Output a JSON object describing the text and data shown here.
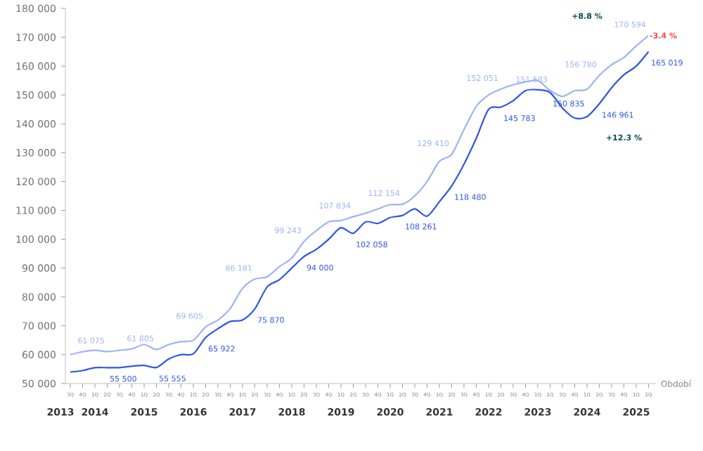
{
  "chart_data": {
    "type": "line",
    "xlabel": "Období",
    "categories": [
      "3Q",
      "4Q",
      "1Q",
      "2Q",
      "3Q",
      "4Q",
      "1Q",
      "2Q",
      "3Q",
      "4Q",
      "1Q",
      "2Q",
      "3Q",
      "4Q",
      "1Q",
      "2Q",
      "3Q",
      "4Q",
      "1Q",
      "2Q",
      "3Q",
      "4Q",
      "1Q",
      "2Q",
      "3Q",
      "4Q",
      "1Q",
      "2Q",
      "3Q",
      "4Q",
      "1Q",
      "2Q",
      "3Q",
      "4Q",
      "1Q",
      "2Q",
      "3Q",
      "4Q",
      "1Q",
      "2Q",
      "3Q",
      "4Q",
      "1Q",
      "2Q",
      "3Q",
      "4Q",
      "1Q",
      "2Q"
    ],
    "series": [
      {
        "color": "#9db3f5",
        "values": [
          60000,
          61000,
          61500,
          61075,
          61500,
          62000,
          63500,
          61805,
          63500,
          64500,
          65000,
          69605,
          72000,
          76000,
          83000,
          86181,
          87000,
          90500,
          93500,
          99243,
          103000,
          106000,
          106500,
          107834,
          109000,
          110500,
          112000,
          112154,
          115000,
          120000,
          127000,
          129410,
          138000,
          146000,
          150000,
          152051,
          153500,
          154500,
          155000,
          151583,
          149500,
          151500,
          152000,
          156780,
          160500,
          163000,
          167000,
          170594
        ],
        "value_labels": [
          null,
          null,
          null,
          "61 075",
          null,
          null,
          null,
          "61 805",
          null,
          null,
          null,
          "69 605",
          null,
          null,
          null,
          "86 181",
          null,
          null,
          null,
          "99 243",
          null,
          null,
          null,
          "107 834",
          null,
          null,
          null,
          "112 154",
          null,
          null,
          null,
          "129 410",
          null,
          null,
          null,
          "152 051",
          null,
          null,
          null,
          "151 583",
          null,
          null,
          null,
          "156 780",
          null,
          null,
          null,
          "170 594"
        ]
      },
      {
        "color": "#2f55e8",
        "values": [
          54000,
          54500,
          55500,
          55500,
          55500,
          56000,
          56300,
          55555,
          58500,
          60000,
          60300,
          65922,
          69000,
          71500,
          72000,
          75870,
          83500,
          86000,
          90000,
          94000,
          96500,
          100000,
          104000,
          102058,
          106000,
          105500,
          107500,
          108261,
          110500,
          108000,
          113000,
          118480,
          126000,
          135000,
          145000,
          145783,
          148000,
          151500,
          151800,
          150835,
          145500,
          142000,
          142500,
          146961,
          152500,
          157000,
          160000,
          165019
        ],
        "value_labels": [
          null,
          null,
          null,
          "55 500",
          null,
          null,
          null,
          "55 555",
          null,
          null,
          null,
          "65 922",
          null,
          null,
          null,
          "75 870",
          null,
          null,
          null,
          "94 000",
          null,
          null,
          null,
          "102 058",
          null,
          null,
          null,
          "108 261",
          null,
          null,
          null,
          "118 480",
          null,
          null,
          null,
          "145 783",
          null,
          null,
          null,
          "150 835",
          null,
          null,
          null,
          "146 961",
          null,
          null,
          null,
          "165 019"
        ]
      }
    ],
    "ylim": [
      50000,
      180000
    ],
    "yticks": [
      {
        "value": 50000,
        "label": "50 000"
      },
      {
        "value": 60000,
        "label": "60 000"
      },
      {
        "value": 70000,
        "label": "70 000"
      },
      {
        "value": 80000,
        "label": "80 000"
      },
      {
        "value": 90000,
        "label": "90 000"
      },
      {
        "value": 100000,
        "label": "100 000"
      },
      {
        "value": 110000,
        "label": "110 000"
      },
      {
        "value": 120000,
        "label": "120 000"
      },
      {
        "value": 130000,
        "label": "130 000"
      },
      {
        "value": 140000,
        "label": "140 000"
      },
      {
        "value": 150000,
        "label": "150 000"
      },
      {
        "value": 160000,
        "label": "160 000"
      },
      {
        "value": 170000,
        "label": "170 000"
      },
      {
        "value": 180000,
        "label": "180 000"
      }
    ],
    "annotations": [
      "+8.8 %",
      "+12.3 %",
      "-3.4 %",
      "2013",
      "2014",
      "2015",
      "2016",
      "2017",
      "2018",
      "2019",
      "2020",
      "2021",
      "2022",
      "2023",
      "2024",
      "2025"
    ],
    "grid": false,
    "marker": "none",
    "line_style": "solid"
  }
}
